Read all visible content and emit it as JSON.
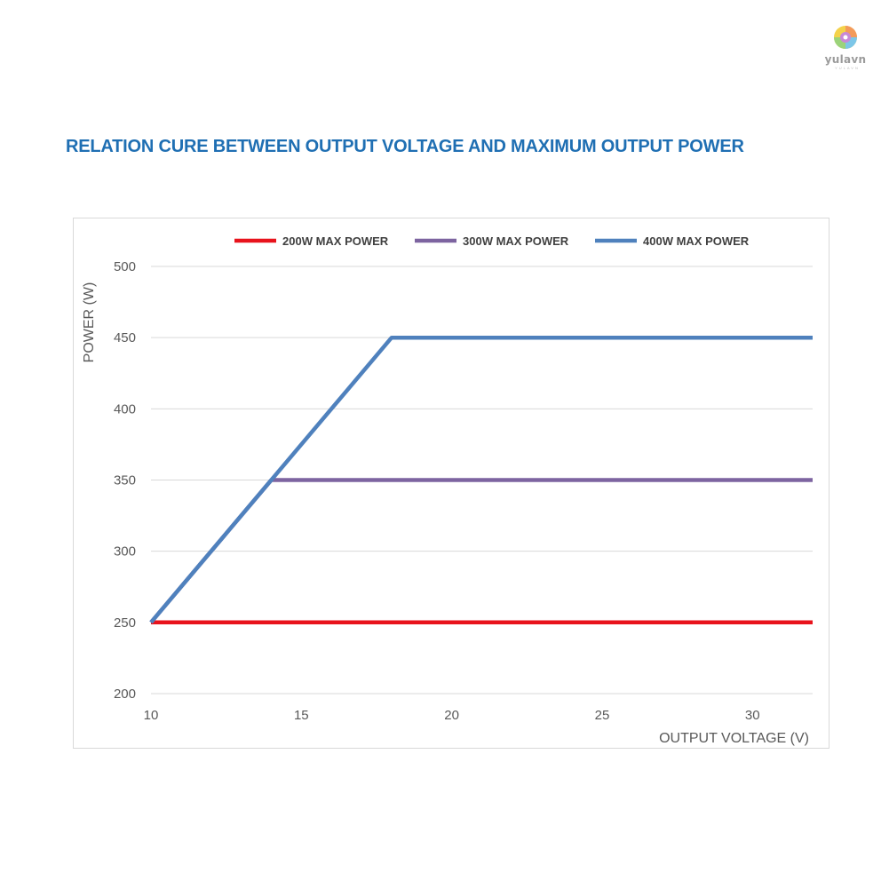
{
  "brand": {
    "name": "yulavn",
    "sub": "YULAVN"
  },
  "title": "RELATION CURE BETWEEN OUTPUT VOLTAGE AND MAXIMUM OUTPUT POWER",
  "chart_data": {
    "type": "line",
    "title": "",
    "xlabel": "OUTPUT VOLTAGE (V)",
    "ylabel": "POWER (W)",
    "xlim": [
      10,
      32
    ],
    "ylim": [
      200,
      500
    ],
    "xticks": [
      10,
      15,
      20,
      25,
      30
    ],
    "yticks": [
      200,
      250,
      300,
      350,
      400,
      450,
      500
    ],
    "grid": "horizontal",
    "legend": "top",
    "series": [
      {
        "name": "200W MAX POWER",
        "color": "#e8131c",
        "points": [
          [
            10,
            250
          ],
          [
            32,
            250
          ]
        ]
      },
      {
        "name": "300W MAX POWER",
        "color": "#7d64a0",
        "points": [
          [
            10,
            250
          ],
          [
            14,
            350
          ],
          [
            32,
            350
          ]
        ]
      },
      {
        "name": "400W MAX POWER",
        "color": "#4f81bd",
        "points": [
          [
            10,
            250
          ],
          [
            18,
            450
          ],
          [
            32,
            450
          ]
        ]
      }
    ]
  }
}
